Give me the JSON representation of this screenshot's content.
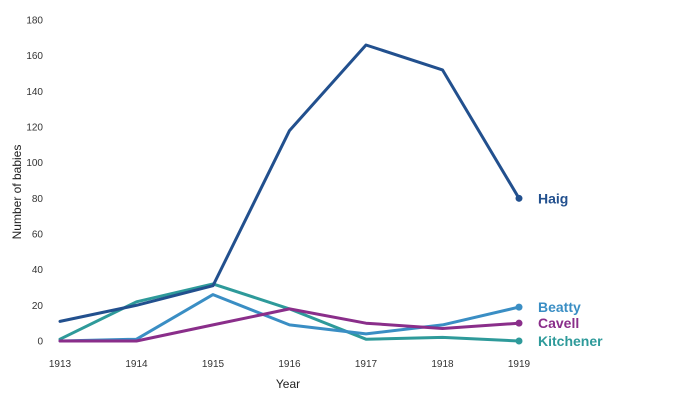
{
  "chart_data": {
    "type": "line",
    "xlabel": "Year",
    "ylabel": "Number of babies",
    "x": [
      "1913",
      "1914",
      "1915",
      "1916",
      "1917",
      "1918",
      "1919"
    ],
    "ylim": [
      0,
      180
    ],
    "yticks": [
      "0",
      "20",
      "40",
      "60",
      "80",
      "100",
      "120",
      "140",
      "160",
      "180"
    ],
    "grid": false,
    "legend": "direct labels at line ends",
    "series": [
      {
        "name": "Kitchener",
        "color": "#2e9a9a",
        "values": [
          1,
          22,
          32,
          18,
          1,
          2,
          0
        ]
      },
      {
        "name": "Beatty",
        "color": "#3a8ec4",
        "values": [
          0,
          1,
          26,
          9,
          4,
          9,
          19
        ]
      },
      {
        "name": "Cavell",
        "color": "#8a2e8a",
        "values": [
          0,
          0,
          9,
          18,
          10,
          7,
          10
        ]
      },
      {
        "name": "Haig",
        "color": "#22508e",
        "values": [
          11,
          20,
          31,
          118,
          166,
          152,
          80
        ]
      }
    ]
  }
}
